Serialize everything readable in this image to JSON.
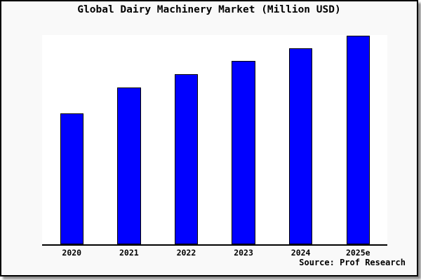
{
  "title": "Global Dairy Machinery Market (Million USD)",
  "source_credit": "Source: Prof Research",
  "colors": {
    "bar_fill": "#0000ff",
    "bar_border": "#000000",
    "axis": "#000000",
    "plot_background": "#ffffff",
    "frame_background": "#f9f9f9",
    "frame_border": "#000000",
    "text": "#000000"
  },
  "chart_data": {
    "type": "bar",
    "title": "Global Dairy Machinery Market (Million USD)",
    "categories": [
      "2020",
      "2021",
      "2022",
      "2023",
      "2024",
      "2025e"
    ],
    "values": [
      62.5,
      74.9,
      81.3,
      87.6,
      93.8,
      99.7
    ],
    "value_unit": "percent of plot height (no numeric y-axis shown in chart)",
    "xlabel": "",
    "ylabel": "",
    "ylim": [
      0,
      100
    ],
    "grid": false,
    "legend": false,
    "y_axis_ticks_visible": false,
    "annotations": [
      "Source: Prof Research"
    ]
  }
}
